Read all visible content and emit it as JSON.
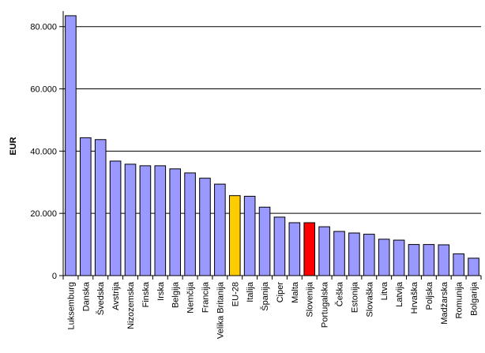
{
  "chart_data": {
    "type": "bar",
    "title": "",
    "xlabel": "",
    "ylabel": "EUR",
    "ylim": [
      0,
      85000
    ],
    "yticks": [
      0,
      20000,
      40000,
      60000,
      80000
    ],
    "ytick_labels": [
      "0",
      "20.000",
      "40.000",
      "60.000",
      "80.000"
    ],
    "grid": "horizontal",
    "legend": "none",
    "colors": {
      "default": "#9999ff",
      "eu28": "#ffcc00",
      "slovenija": "#ff0000",
      "bar_edge": "#000000",
      "grid": "#000000"
    },
    "categories": [
      "Luksemburg",
      "Danska",
      "Švedska",
      "Avstrija",
      "Nizozemska",
      "Finska",
      "Irska",
      "Belgija",
      "Nemčija",
      "Francija",
      "Velika Britanija",
      "EU-28",
      "Italija",
      "Španija",
      "Ciper",
      "Malta",
      "Slovenija",
      "Portugalska",
      "Češka",
      "Estonija",
      "Slovaška",
      "Litva",
      "Latvija",
      "Hrvaška",
      "Poljska",
      "Madžarska",
      "Romunija",
      "Bolgarija"
    ],
    "values": [
      83500,
      44300,
      43700,
      36800,
      35800,
      35300,
      35300,
      34300,
      33000,
      31300,
      29400,
      25700,
      25500,
      22000,
      18800,
      17000,
      17000,
      15700,
      14200,
      13700,
      13300,
      11700,
      11400,
      10000,
      10000,
      9900,
      7000,
      5600
    ],
    "highlight": {
      "EU-28": "eu28",
      "Slovenija": "slovenija"
    }
  }
}
